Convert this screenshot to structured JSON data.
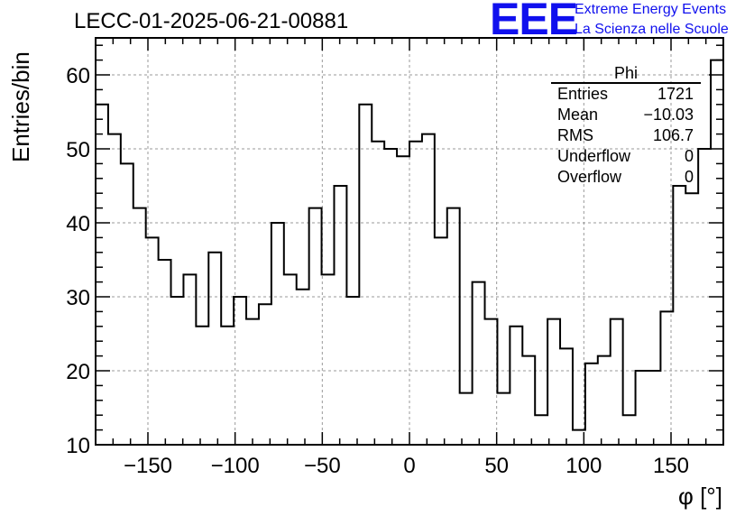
{
  "chart_data": {
    "type": "bar",
    "title": "LECC-01-2025-06-21-00881",
    "xlabel": "φ [°]",
    "ylabel": "Entries/bin",
    "xlim": [
      -180,
      180
    ],
    "ylim": [
      10,
      65
    ],
    "grid": true,
    "x_ticks": [
      -150,
      -100,
      -50,
      0,
      50,
      100,
      150
    ],
    "y_ticks": [
      10,
      20,
      30,
      40,
      50,
      60
    ],
    "bin_width": 7.2,
    "bin_edges_start": -180,
    "values": [
      56,
      52,
      48,
      42,
      38,
      35,
      30,
      33,
      26,
      36,
      26,
      30,
      27,
      29,
      40,
      33,
      31,
      42,
      33,
      45,
      30,
      56,
      51,
      50,
      49,
      51,
      52,
      38,
      42,
      17,
      32,
      27,
      17,
      26,
      22,
      14,
      27,
      23,
      12,
      21,
      22,
      27,
      14,
      20,
      20,
      28,
      45,
      44,
      50,
      62
    ]
  },
  "stats_box": {
    "title": "Phi",
    "rows": [
      {
        "label": "Entries",
        "value": "1721"
      },
      {
        "label": "Mean",
        "value": "−10.03"
      },
      {
        "label": "RMS",
        "value": "106.7"
      },
      {
        "label": "Underflow",
        "value": "0"
      },
      {
        "label": "Overflow",
        "value": "0"
      }
    ]
  },
  "logo": {
    "mark": "EEE",
    "line1": "Extreme Energy Events",
    "line2": "La Scienza nelle Scuole",
    "color": "#1010ee"
  }
}
